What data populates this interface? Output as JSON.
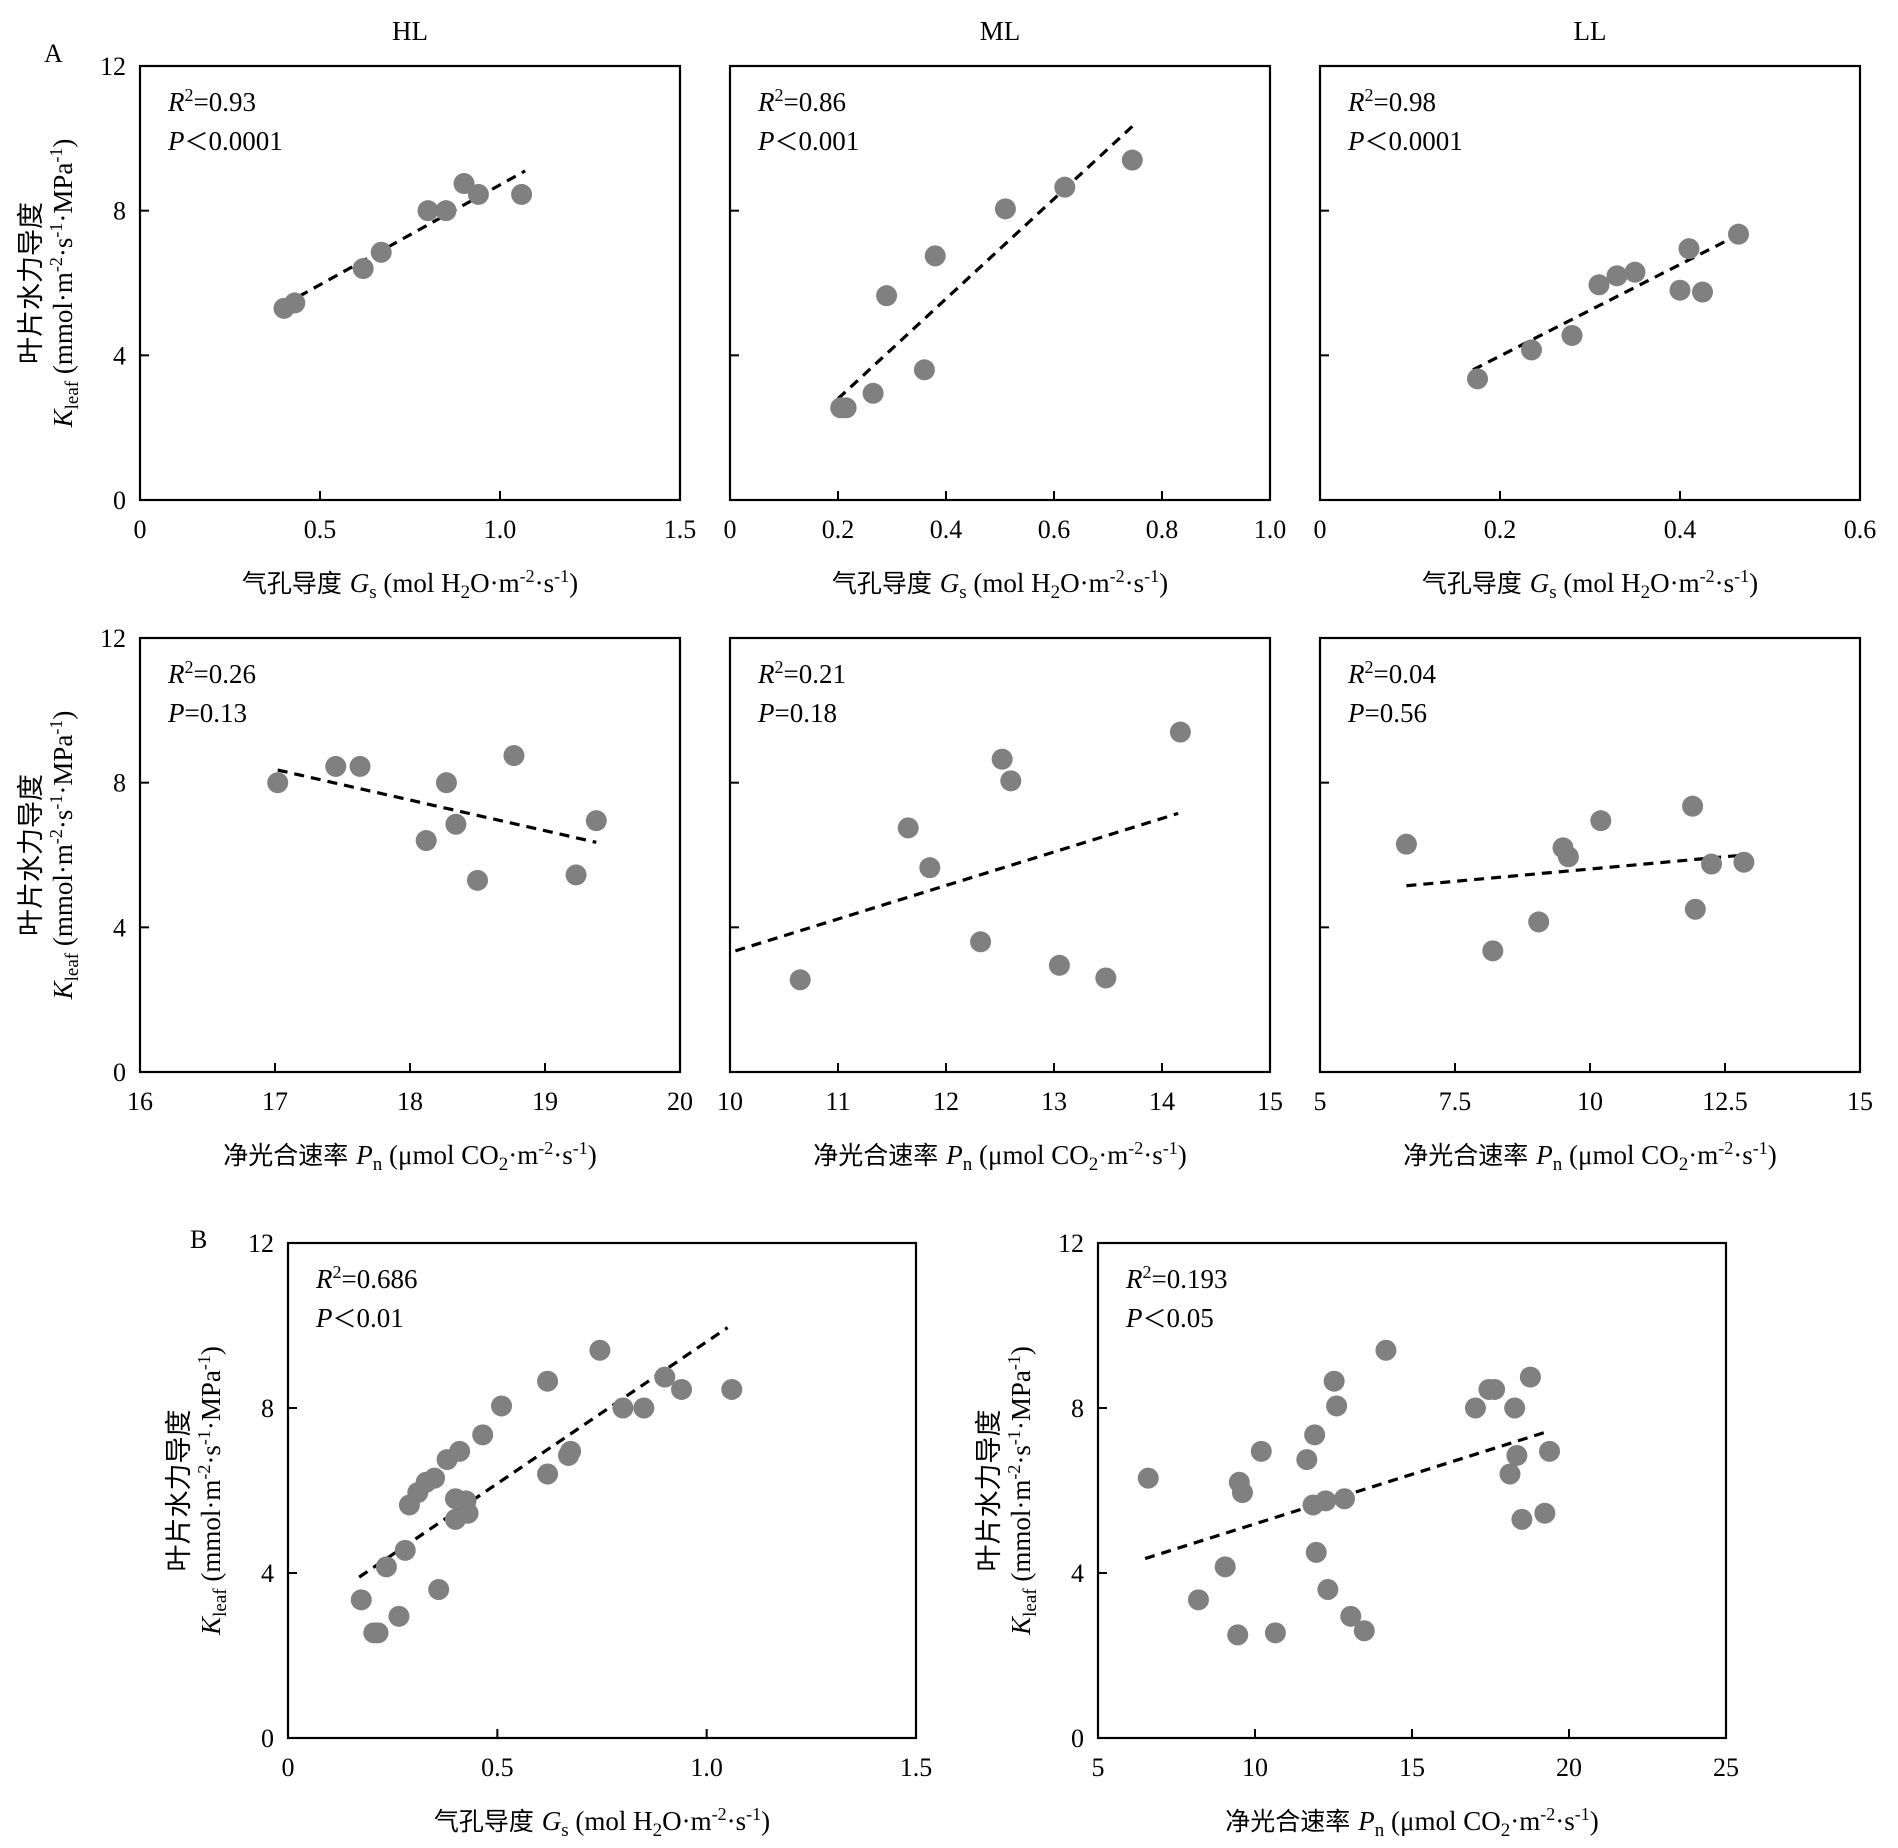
{
  "figure": {
    "column_titles": [
      "HL",
      "ML",
      "LL"
    ],
    "panel_letters": [
      "A",
      "B"
    ]
  },
  "chart_data": [
    {
      "id": "A-HL-Gs",
      "type": "scatter",
      "xlabel": "气孔导度 Gs (mol H2O·m-2·s-1)",
      "ylabel_line1": "叶片水力导度",
      "ylabel_line2": "Kleaf (mmol·m-2·s-1·MPa-1)",
      "xlim": [
        0,
        1.5
      ],
      "ylim": [
        0,
        12
      ],
      "xticks": [
        0,
        0.5,
        1.0,
        1.5
      ],
      "xtick_labels": [
        "0",
        "0.5",
        "1.0",
        "1.5"
      ],
      "yticks": [
        0,
        4,
        8,
        12
      ],
      "ytick_labels": [
        "0",
        "4",
        "8",
        "12"
      ],
      "stats": {
        "r2": "=0.93",
        "p": "<0.0001"
      },
      "points": [
        [
          0.4,
          5.3
        ],
        [
          0.43,
          5.45
        ],
        [
          0.62,
          6.4
        ],
        [
          0.67,
          6.85
        ],
        [
          0.8,
          8.0
        ],
        [
          0.85,
          8.0
        ],
        [
          0.9,
          8.75
        ],
        [
          0.94,
          8.45
        ],
        [
          1.06,
          8.45
        ]
      ],
      "trend": [
        [
          0.4,
          5.4
        ],
        [
          1.07,
          9.1
        ]
      ]
    },
    {
      "id": "A-ML-Gs",
      "type": "scatter",
      "xlabel": "气孔导度 Gs (mol H2O·m-2·s-1)",
      "xlim": [
        0,
        1.0
      ],
      "ylim": [
        0,
        12
      ],
      "xticks": [
        0,
        0.2,
        0.4,
        0.6,
        0.8,
        1.0
      ],
      "xtick_labels": [
        "0",
        "0.2",
        "0.4",
        "0.6",
        "0.8",
        "1.0"
      ],
      "yticks": [
        0,
        4,
        8,
        12
      ],
      "stats": {
        "r2": "=0.86",
        "p": "<0.001"
      },
      "points": [
        [
          0.205,
          2.55
        ],
        [
          0.215,
          2.55
        ],
        [
          0.265,
          2.95
        ],
        [
          0.29,
          5.65
        ],
        [
          0.36,
          3.6
        ],
        [
          0.38,
          6.75
        ],
        [
          0.51,
          8.05
        ],
        [
          0.62,
          8.65
        ],
        [
          0.745,
          9.4
        ]
      ],
      "trend": [
        [
          0.2,
          2.8
        ],
        [
          0.75,
          10.4
        ]
      ]
    },
    {
      "id": "A-LL-Gs",
      "type": "scatter",
      "xlabel": "气孔导度 Gs (mol H2O·m-2·s-1)",
      "xlim": [
        0,
        0.6
      ],
      "ylim": [
        0,
        12
      ],
      "xticks": [
        0,
        0.2,
        0.4,
        0.6
      ],
      "xtick_labels": [
        "0",
        "0.2",
        "0.4",
        "0.6"
      ],
      "yticks": [
        0,
        4,
        8,
        12
      ],
      "stats": {
        "r2": "=0.98",
        "p": "<0.0001"
      },
      "points": [
        [
          0.175,
          3.35
        ],
        [
          0.235,
          4.15
        ],
        [
          0.28,
          4.55
        ],
        [
          0.31,
          5.95
        ],
        [
          0.33,
          6.2
        ],
        [
          0.35,
          6.3
        ],
        [
          0.4,
          5.8
        ],
        [
          0.41,
          6.95
        ],
        [
          0.425,
          5.75
        ],
        [
          0.465,
          7.35
        ]
      ],
      "trend": [
        [
          0.17,
          3.6
        ],
        [
          0.47,
          7.4
        ]
      ]
    },
    {
      "id": "A-HL-Pn",
      "type": "scatter",
      "xlabel": "净光合速率 Pn (μmol CO2·m-2·s-1)",
      "ylabel_line1": "叶片水力导度",
      "ylabel_line2": "Kleaf (mmol·m-2·s-1·MPa-1)",
      "xlim": [
        16,
        20
      ],
      "ylim": [
        0,
        12
      ],
      "xticks": [
        16,
        17,
        18,
        19,
        20
      ],
      "xtick_labels": [
        "16",
        "17",
        "18",
        "19",
        "20"
      ],
      "yticks": [
        0,
        4,
        8,
        12
      ],
      "ytick_labels": [
        "0",
        "4",
        "8",
        "12"
      ],
      "stats": {
        "r2": "=0.26",
        "p": "=0.13"
      },
      "points": [
        [
          17.02,
          8.0
        ],
        [
          17.45,
          8.45
        ],
        [
          17.63,
          8.45
        ],
        [
          18.12,
          6.4
        ],
        [
          18.27,
          8.0
        ],
        [
          18.34,
          6.85
        ],
        [
          18.5,
          5.3
        ],
        [
          18.77,
          8.75
        ],
        [
          19.23,
          5.45
        ],
        [
          19.38,
          6.95
        ]
      ],
      "trend": [
        [
          17.02,
          8.35
        ],
        [
          19.38,
          6.35
        ]
      ]
    },
    {
      "id": "A-ML-Pn",
      "type": "scatter",
      "xlabel": "净光合速率 Pn (μmol CO2·m-2·s-1)",
      "xlim": [
        10,
        15
      ],
      "ylim": [
        0,
        12
      ],
      "xticks": [
        10,
        11,
        12,
        13,
        14,
        15
      ],
      "xtick_labels": [
        "10",
        "11",
        "12",
        "13",
        "14",
        "15"
      ],
      "yticks": [
        0,
        4,
        8,
        12
      ],
      "stats": {
        "r2": "=0.21",
        "p": "=0.18"
      },
      "points": [
        [
          10.65,
          2.55
        ],
        [
          11.65,
          6.75
        ],
        [
          11.85,
          5.65
        ],
        [
          12.32,
          3.6
        ],
        [
          12.52,
          8.65
        ],
        [
          12.6,
          8.05
        ],
        [
          13.05,
          2.95
        ],
        [
          13.48,
          2.6
        ],
        [
          14.17,
          9.4
        ]
      ],
      "trend": [
        [
          10.05,
          3.35
        ],
        [
          14.15,
          7.15
        ]
      ]
    },
    {
      "id": "A-LL-Pn",
      "type": "scatter",
      "xlabel": "净光合速率 Pn (μmol CO2·m-2·s-1)",
      "xlim": [
        5,
        15
      ],
      "ylim": [
        0,
        12
      ],
      "xticks": [
        5,
        7.5,
        10,
        12.5,
        15
      ],
      "xtick_labels": [
        "5",
        "7.5",
        "10",
        "12.5",
        "15"
      ],
      "yticks": [
        0,
        4,
        8,
        12
      ],
      "stats": {
        "r2": "=0.04",
        "p": "=0.56"
      },
      "points": [
        [
          6.6,
          6.3
        ],
        [
          8.2,
          3.35
        ],
        [
          9.05,
          4.15
        ],
        [
          9.5,
          6.2
        ],
        [
          9.6,
          5.95
        ],
        [
          10.2,
          6.95
        ],
        [
          11.9,
          7.35
        ],
        [
          11.95,
          4.5
        ],
        [
          12.25,
          5.75
        ],
        [
          12.85,
          5.8
        ]
      ],
      "trend": [
        [
          6.6,
          5.15
        ],
        [
          12.85,
          6.0
        ]
      ]
    },
    {
      "id": "B-Gs",
      "type": "scatter",
      "xlabel": "气孔导度 Gs (mol H2O·m-2·s-1)",
      "ylabel_line1": "叶片水力导度",
      "ylabel_line2": "Kleaf (mmol·m-2·s-1·MPa-1)",
      "xlim": [
        0,
        1.5
      ],
      "ylim": [
        0,
        12
      ],
      "xticks": [
        0,
        0.5,
        1.0,
        1.5
      ],
      "xtick_labels": [
        "0",
        "0.5",
        "1.0",
        "1.5"
      ],
      "yticks": [
        0,
        4,
        8,
        12
      ],
      "ytick_labels": [
        "0",
        "4",
        "8",
        "12"
      ],
      "stats": {
        "r2": "=0.686",
        "p": "<0.01"
      },
      "points": [
        [
          0.175,
          3.35
        ],
        [
          0.205,
          2.55
        ],
        [
          0.215,
          2.55
        ],
        [
          0.235,
          4.15
        ],
        [
          0.265,
          2.95
        ],
        [
          0.28,
          4.55
        ],
        [
          0.29,
          5.65
        ],
        [
          0.31,
          5.95
        ],
        [
          0.33,
          6.2
        ],
        [
          0.35,
          6.3
        ],
        [
          0.36,
          3.6
        ],
        [
          0.38,
          6.75
        ],
        [
          0.4,
          5.3
        ],
        [
          0.4,
          5.8
        ],
        [
          0.41,
          6.95
        ],
        [
          0.425,
          5.75
        ],
        [
          0.43,
          5.45
        ],
        [
          0.465,
          7.35
        ],
        [
          0.51,
          8.05
        ],
        [
          0.62,
          6.4
        ],
        [
          0.62,
          8.65
        ],
        [
          0.67,
          6.85
        ],
        [
          0.675,
          6.95
        ],
        [
          0.745,
          9.4
        ],
        [
          0.8,
          8.0
        ],
        [
          0.85,
          8.0
        ],
        [
          0.9,
          8.75
        ],
        [
          0.94,
          8.45
        ],
        [
          1.06,
          8.45
        ]
      ],
      "trend": [
        [
          0.17,
          3.9
        ],
        [
          1.05,
          9.95
        ]
      ]
    },
    {
      "id": "B-Pn",
      "type": "scatter",
      "xlabel": "净光合速率 Pn (μmol CO2·m-2·s-1)",
      "ylabel_line1": "叶片水力导度",
      "ylabel_line2": "Kleaf (mmol·m-2·s-1·MPa-1)",
      "xlim": [
        5,
        25
      ],
      "ylim": [
        0,
        12
      ],
      "xticks": [
        5,
        10,
        15,
        20,
        25
      ],
      "xtick_labels": [
        "5",
        "10",
        "15",
        "20",
        "25"
      ],
      "yticks": [
        0,
        4,
        8,
        12
      ],
      "ytick_labels": [
        "0",
        "4",
        "8",
        "12"
      ],
      "stats": {
        "r2": "=0.193",
        "p": "<0.05"
      },
      "points": [
        [
          6.6,
          6.3
        ],
        [
          8.2,
          3.35
        ],
        [
          9.05,
          4.15
        ],
        [
          9.45,
          2.5
        ],
        [
          9.5,
          6.2
        ],
        [
          9.6,
          5.95
        ],
        [
          10.2,
          6.95
        ],
        [
          10.65,
          2.55
        ],
        [
          11.65,
          6.75
        ],
        [
          11.85,
          5.65
        ],
        [
          11.9,
          7.35
        ],
        [
          11.95,
          4.5
        ],
        [
          12.25,
          5.75
        ],
        [
          12.32,
          3.6
        ],
        [
          12.52,
          8.65
        ],
        [
          12.6,
          8.05
        ],
        [
          12.85,
          5.8
        ],
        [
          13.05,
          2.95
        ],
        [
          13.48,
          2.6
        ],
        [
          14.17,
          9.4
        ],
        [
          17.02,
          8.0
        ],
        [
          17.45,
          8.45
        ],
        [
          17.63,
          8.45
        ],
        [
          18.12,
          6.4
        ],
        [
          18.27,
          8.0
        ],
        [
          18.34,
          6.85
        ],
        [
          18.5,
          5.3
        ],
        [
          18.77,
          8.75
        ],
        [
          19.23,
          5.45
        ],
        [
          19.38,
          6.95
        ]
      ],
      "trend": [
        [
          6.5,
          4.35
        ],
        [
          19.4,
          7.45
        ]
      ]
    }
  ]
}
